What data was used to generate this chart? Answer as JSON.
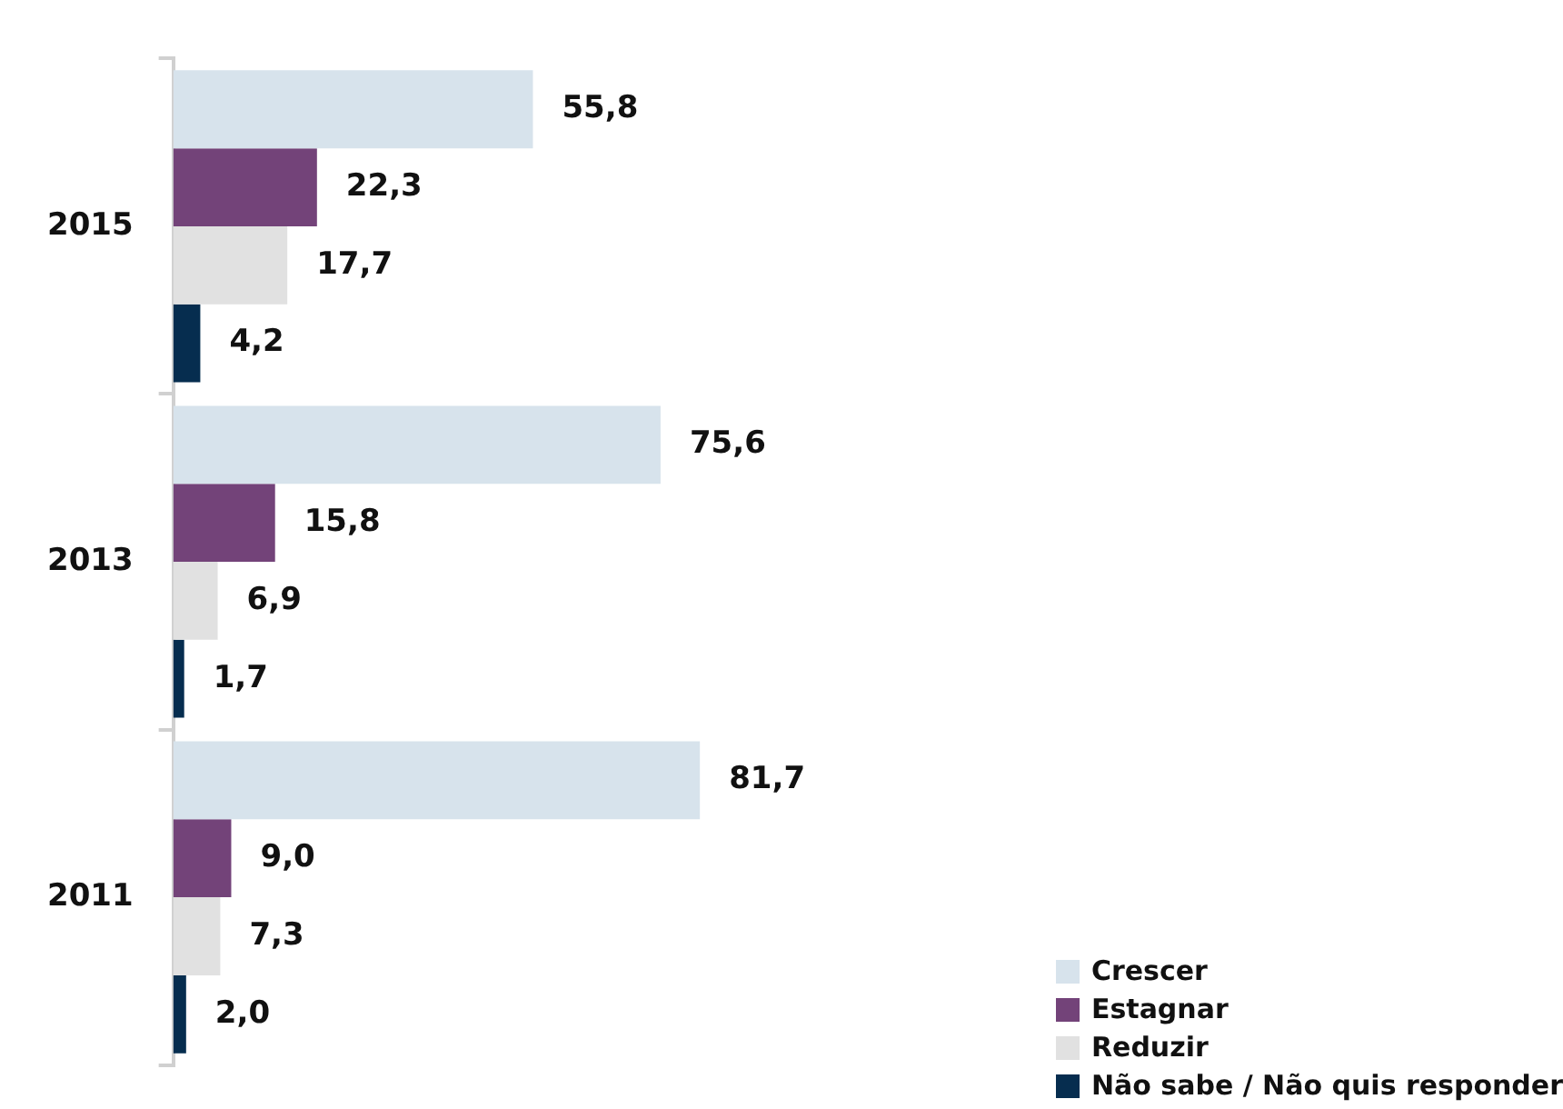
{
  "chart_data": {
    "type": "bar",
    "orientation": "horizontal",
    "categories": [
      "2015",
      "2013",
      "2011"
    ],
    "series": [
      {
        "name": "Crescer",
        "color": "#d7e3ec",
        "values": [
          55.8,
          75.6,
          81.7
        ],
        "value_labels": [
          "55,8",
          "75,6",
          "81,7"
        ]
      },
      {
        "name": "Estagnar",
        "color": "#734379",
        "values": [
          22.3,
          15.8,
          9.0
        ],
        "value_labels": [
          "22,3",
          "15,8",
          "9,0"
        ]
      },
      {
        "name": "Reduzir",
        "color": "#e1e1e1",
        "values": [
          17.7,
          6.9,
          7.3
        ],
        "value_labels": [
          "17,7",
          "6,9",
          "7,3"
        ]
      },
      {
        "name": "Não sabe / Não quis responder",
        "color": "#062d4f",
        "values": [
          4.2,
          1.7,
          2.0
        ],
        "value_labels": [
          "4,2",
          "1,7",
          "2,0"
        ]
      }
    ],
    "legend": "bottom right"
  }
}
